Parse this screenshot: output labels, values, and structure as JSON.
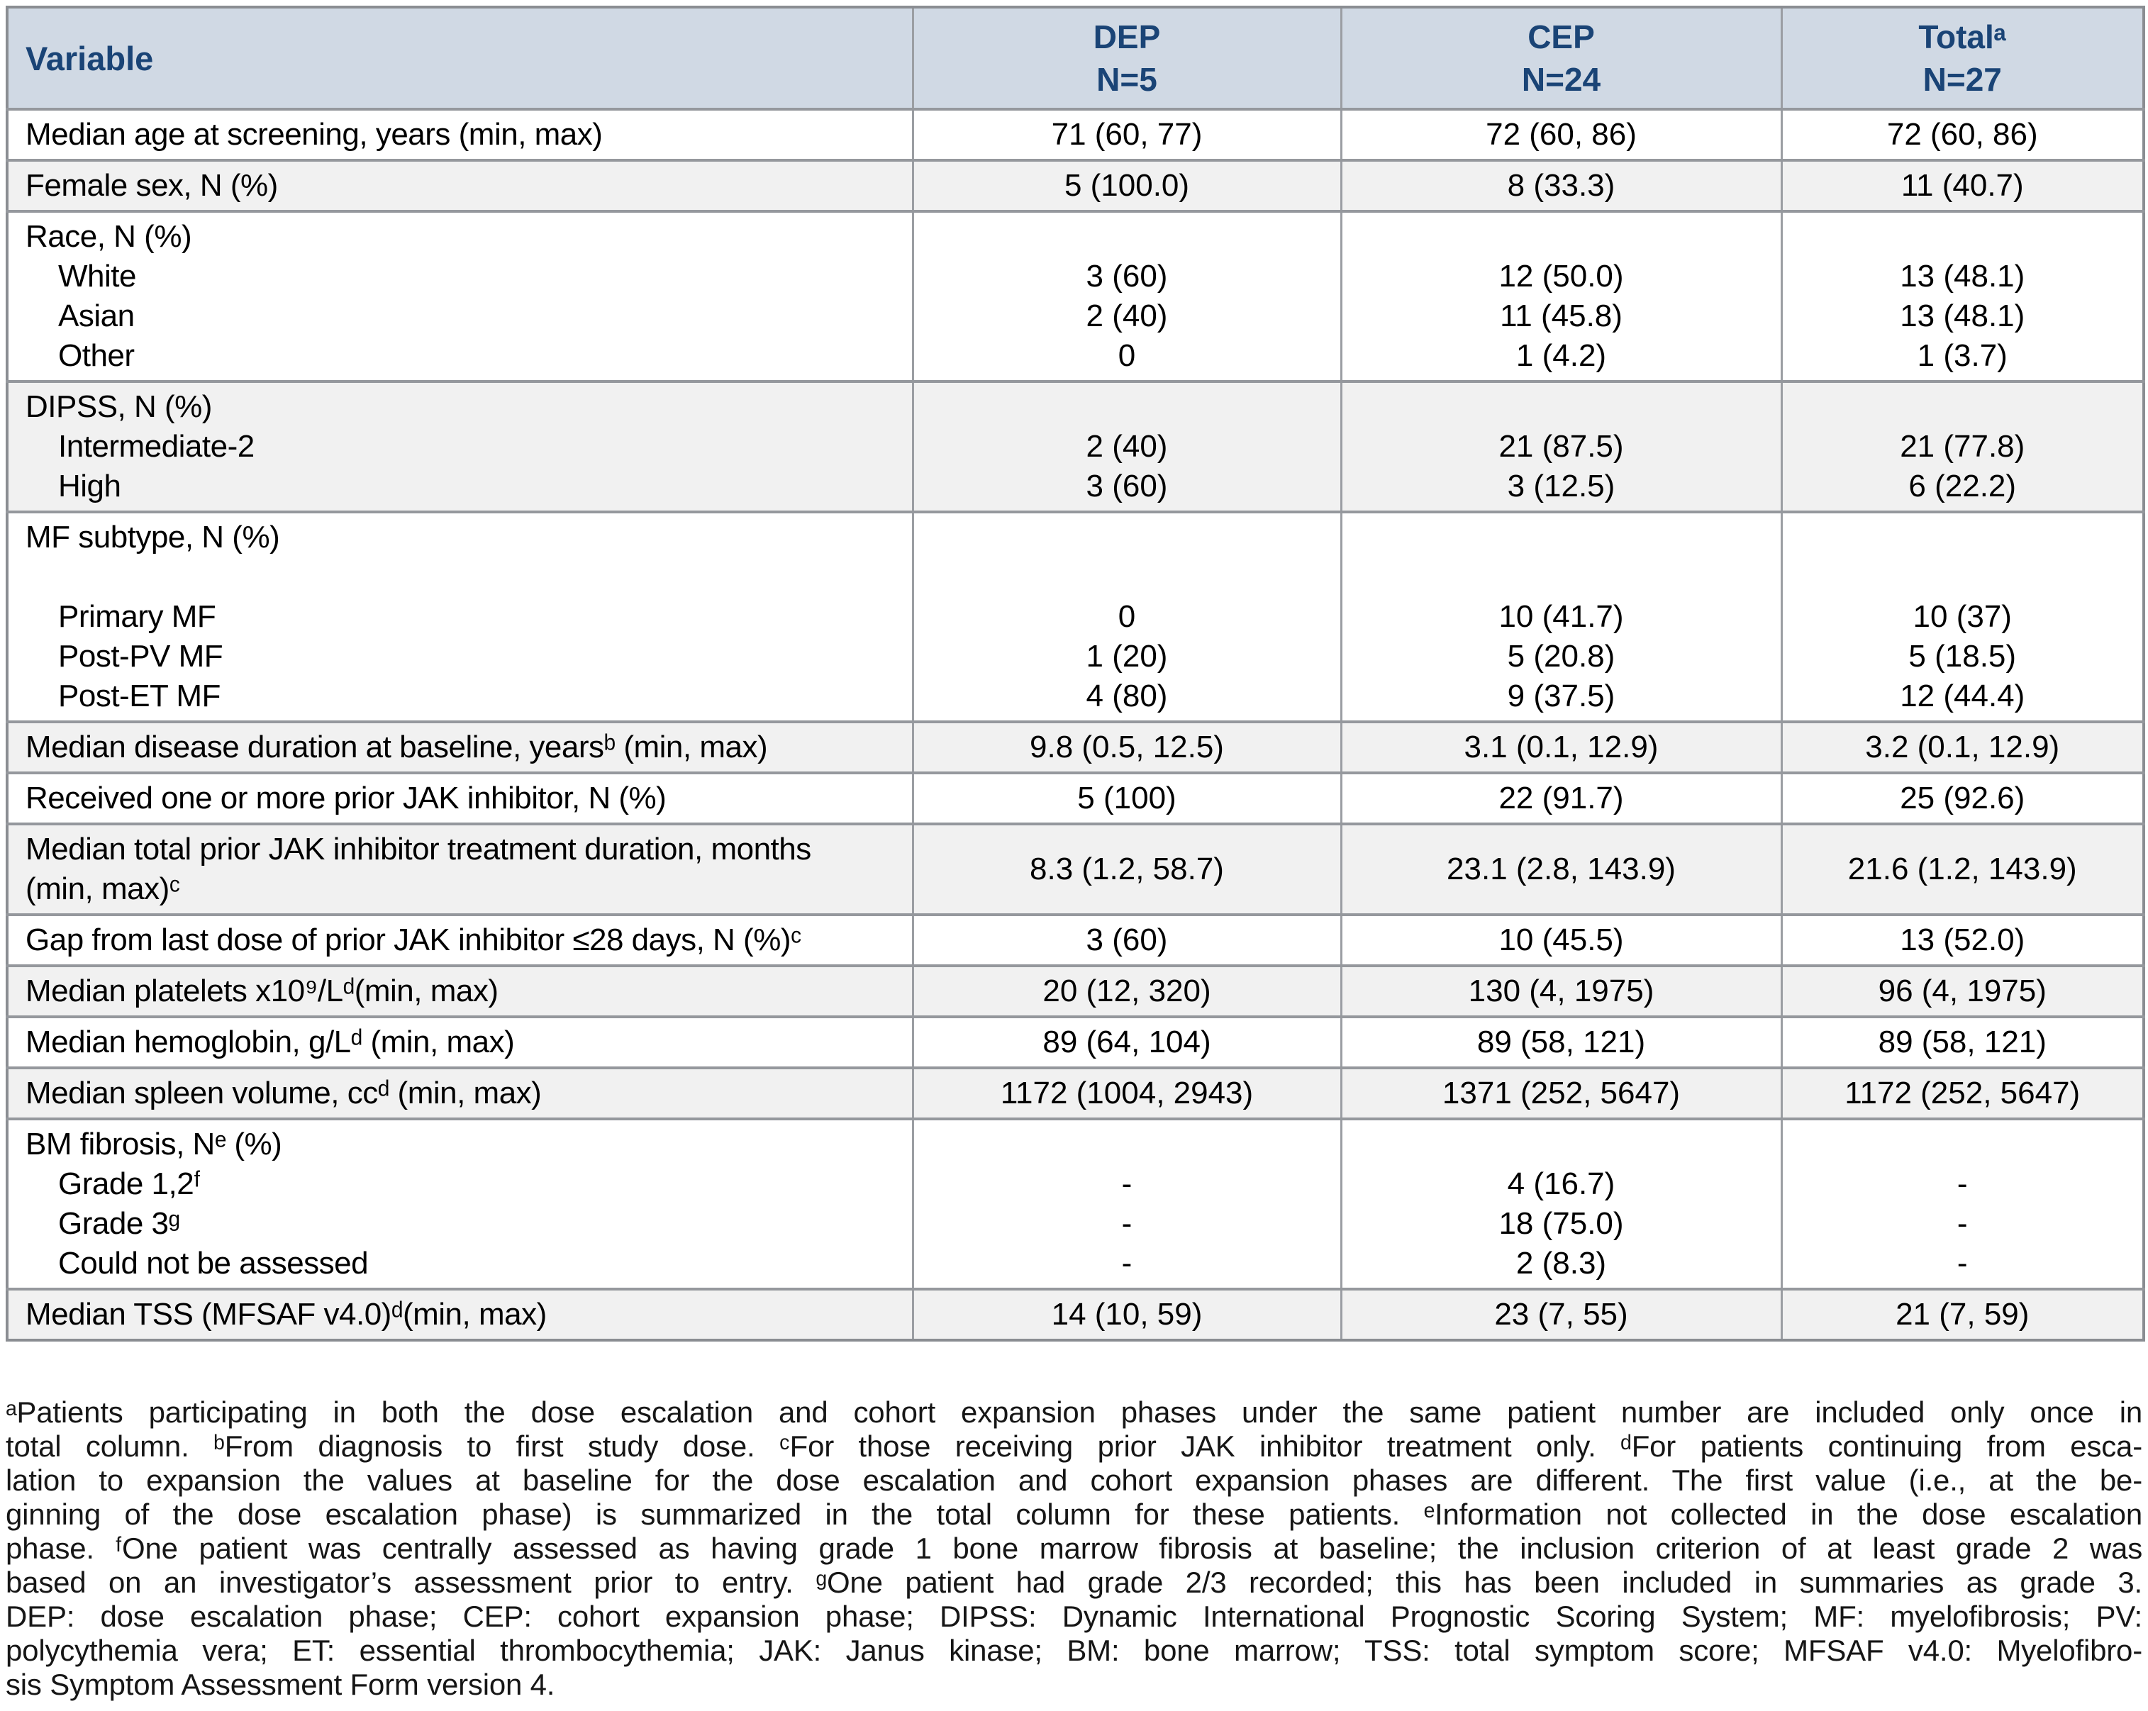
{
  "colors": {
    "header_bg": "#d0d9e4",
    "header_text": "#1a4476",
    "row_alt_bg": "#f1f1f1",
    "border_gray": "#95989d"
  },
  "table": {
    "header": {
      "variable": "Variable",
      "columns": [
        {
          "line1": "DEP",
          "line2": "N=5"
        },
        {
          "line1": "CEP",
          "line2": "N=24"
        },
        {
          "line1": "Totalᵃ",
          "line2": "N=27"
        }
      ]
    },
    "rows": [
      {
        "label": "Median age at screening, years (min, max)",
        "dep": "71 (60, 77)",
        "cep": "72 (60, 86)",
        "total": "72 (60, 86)"
      },
      {
        "label": "Female sex, N (%)",
        "dep": "5 (100.0)",
        "cep": "8 (33.3)",
        "total": "11 (40.7)"
      },
      {
        "group": "Race, N (%)",
        "items": [
          {
            "label": "White",
            "dep": "3 (60)",
            "cep": "12 (50.0)",
            "total": "13 (48.1)"
          },
          {
            "label": "Asian",
            "dep": "2 (40)",
            "cep": "11 (45.8)",
            "total": "13 (48.1)"
          },
          {
            "label": "Other",
            "dep": "0",
            "cep": "1 (4.2)",
            "total": "1 (3.7)"
          }
        ]
      },
      {
        "group": "DIPSS, N (%)",
        "items": [
          {
            "label": "Intermediate-2",
            "dep": "2 (40)",
            "cep": "21 (87.5)",
            "total": "21 (77.8)"
          },
          {
            "label": "High",
            "dep": "3 (60)",
            "cep": "3 (12.5)",
            "total": "6 (22.2)"
          }
        ]
      },
      {
        "group": "MF subtype, N (%)",
        "items": [
          {
            "label": "Primary MF",
            "dep": "0",
            "cep": "10 (41.7)",
            "total": "10 (37)"
          },
          {
            "label": "Post-PV MF",
            "dep": "1 (20)",
            "cep": "5 (20.8)",
            "total": "5 (18.5)"
          },
          {
            "label": "Post-ET MF",
            "dep": "4 (80)",
            "cep": "9 (37.5)",
            "total": "12 (44.4)"
          }
        ]
      },
      {
        "label": "Median disease duration at baseline, yearsᵇ (min, max)",
        "dep": "9.8 (0.5, 12.5)",
        "cep": "3.1 (0.1, 12.9)",
        "total": "3.2 (0.1, 12.9)"
      },
      {
        "label": "Received one or more prior JAK inhibitor, N (%)",
        "dep": "5 (100)",
        "cep": "22 (91.7)",
        "total": "25 (92.6)"
      },
      {
        "label": "Median total prior JAK inhibitor treatment duration, months (min, max)ᶜ",
        "label_line1": "Median total prior JAK inhibitor treatment duration, months",
        "label_line2": "(min, max)ᶜ",
        "dep": "8.3 (1.2, 58.7)",
        "cep": "23.1 (2.8, 143.9)",
        "total": "21.6 (1.2, 143.9)"
      },
      {
        "label": "Gap from last dose of prior JAK inhibitor ≤28 days, N (%)ᶜ",
        "dep": "3 (60)",
        "cep": "10 (45.5)",
        "total": "13 (52.0)"
      },
      {
        "label": "Median platelets x10⁹/Lᵈ(min, max)",
        "dep": "20 (12, 320)",
        "cep": "130 (4, 1975)",
        "total": "96 (4, 1975)"
      },
      {
        "label": "Median hemoglobin, g/Lᵈ (min, max)",
        "dep": "89 (64, 104)",
        "cep": "89 (58, 121)",
        "total": "89 (58, 121)"
      },
      {
        "label": "Median spleen volume, ccᵈ (min, max)",
        "dep": "1172 (1004, 2943)",
        "cep": "1371 (252, 5647)",
        "total": "1172 (252, 5647)"
      },
      {
        "group": "BM fibrosis, Nᵉ (%)",
        "items": [
          {
            "label": "Grade 1,2ᶠ",
            "dep": "-",
            "cep": "4 (16.7)",
            "total": "-"
          },
          {
            "label": "Grade 3ᵍ",
            "dep": "-",
            "cep": "18 (75.0)",
            "total": "-"
          },
          {
            "label": "Could not be assessed",
            "dep": "-",
            "cep": "2 (8.3)",
            "total": "-"
          }
        ]
      },
      {
        "label": "Median TSS (MFSAF v4.0)ᵈ(min, max)",
        "dep": "14 (10, 59)",
        "cep": "23 (7, 55)",
        "total": "21 (7, 59)"
      }
    ]
  },
  "footnotes": {
    "lines": [
      "ᵃPatients participating in both the dose escalation and cohort expansion phases under the same patient number are included only once in",
      "total column. ᵇFrom diagnosis to first study dose. ᶜFor those receiving prior JAK inhibitor treatment only. ᵈFor patients continuing from esca-",
      "lation to expansion the values at baseline for the dose escalation and cohort expansion phases are different. The first value (i.e., at the be-",
      "ginning of the dose escalation phase) is summarized in the total column for these patients. ᵉInformation not collected in the dose escalation",
      "phase. ᶠOne patient was centrally assessed as having grade 1 bone marrow fibrosis at baseline; the inclusion criterion of at least grade 2 was",
      "based on an investigator’s assessment prior to entry. ᵍOne patient had grade 2/3 recorded; this has been included in summaries as grade 3.",
      "DEP: dose escalation phase; CEP: cohort expansion phase; DIPSS: Dynamic International Prognostic Scoring System; MF: myelofibrosis; PV:",
      "polycythemia vera; ET: essential thrombocythemia; JAK: Janus kinase; BM: bone marrow; TSS: total symptom score; MFSAF v4.0: Myelofibro-",
      "sis Symptom Assessment Form version 4."
    ]
  }
}
